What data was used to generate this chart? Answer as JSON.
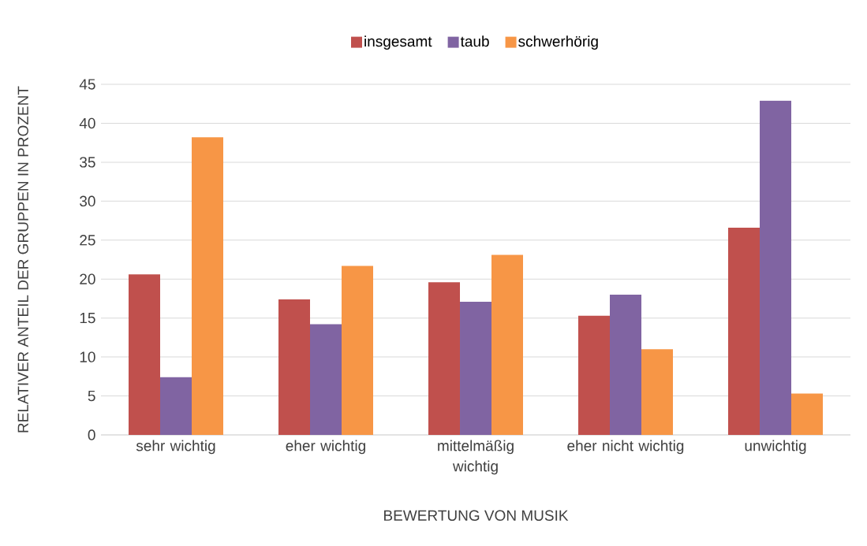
{
  "chart_data": {
    "type": "bar",
    "xlabel": "BEWERTUNG VON MUSIK",
    "ylabel": "RELATIVER ANTEIL DER GRUPPEN IN PROZENT",
    "categories": [
      "sehr wichtig",
      "eher wichtig",
      "mittelmäßig wichtig",
      "eher nicht wichtig",
      "unwichtig"
    ],
    "series": [
      {
        "name": "insgesamt",
        "color": "#c0504d",
        "values": [
          20.6,
          17.4,
          19.6,
          15.3,
          26.6
        ]
      },
      {
        "name": "taub",
        "color": "#8064a2",
        "values": [
          7.4,
          14.2,
          17.1,
          18.0,
          42.9
        ]
      },
      {
        "name": "schwerhörig",
        "color": "#f79646",
        "values": [
          38.2,
          21.7,
          23.1,
          11.0,
          5.3
        ]
      }
    ],
    "ylim": [
      0,
      45
    ],
    "yticks": [
      0,
      5,
      10,
      15,
      20,
      25,
      30,
      35,
      40,
      45
    ],
    "grid": "y",
    "legend": "top"
  }
}
